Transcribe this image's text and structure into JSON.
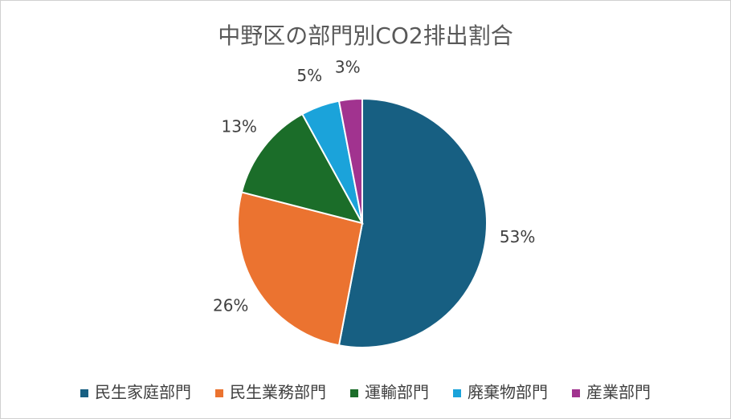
{
  "chart_data": {
    "type": "pie",
    "title": "中野区の部門別CO2排出割合",
    "categories": [
      "民生家庭部門",
      "民生業務部門",
      "運輸部門",
      "廃棄物部門",
      "産業部門"
    ],
    "values": [
      53,
      26,
      13,
      5,
      3
    ],
    "value_labels": [
      "53%",
      "26%",
      "13%",
      "5%",
      "3%"
    ],
    "colors": [
      "#175f82",
      "#eb7330",
      "#1b6d29",
      "#1ba3da",
      "#a1338f"
    ],
    "legend": "bottom"
  }
}
